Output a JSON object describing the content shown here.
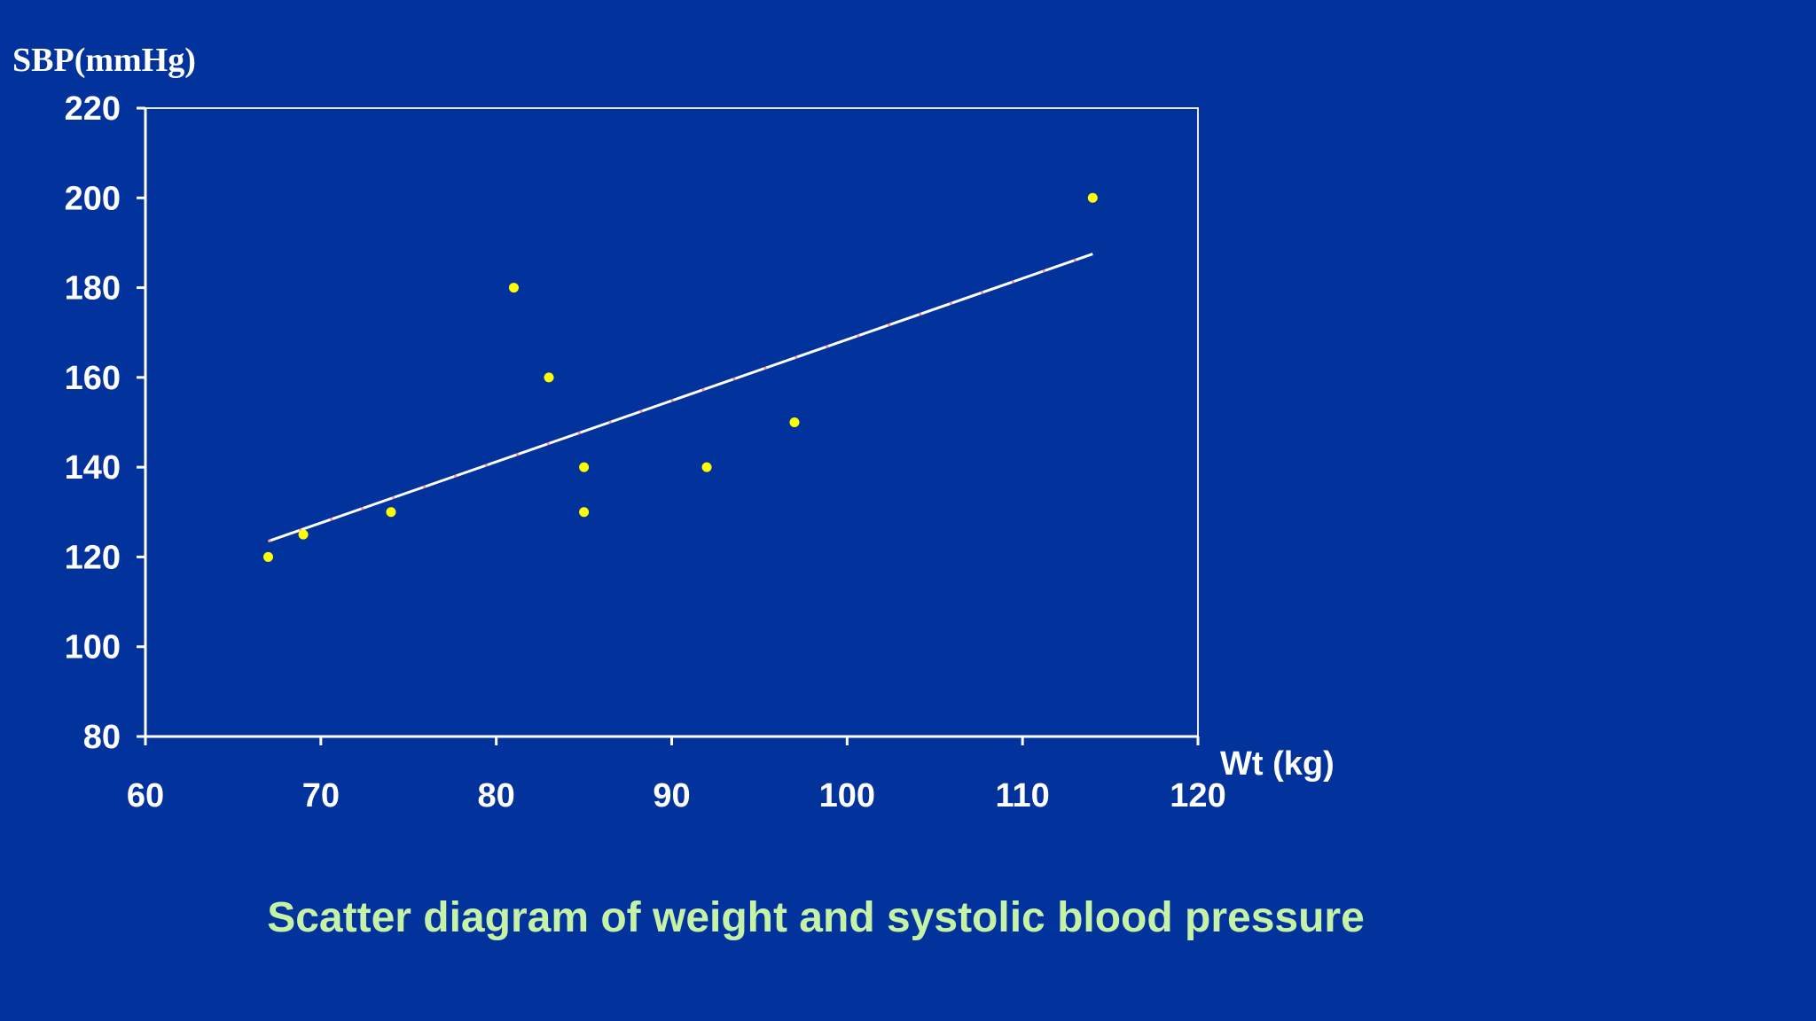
{
  "colors": {
    "background": "#02339c",
    "axis": "#ffffff",
    "points": "#ffff00",
    "trendline": "#ffffff",
    "trendline_accent": "#ff6a6a",
    "caption": "#c6f2a8"
  },
  "caption": "Scatter diagram of weight and systolic blood pressure",
  "chart_data": {
    "type": "scatter",
    "title": "",
    "xlabel": "Wt (kg)",
    "ylabel": "SBP(mmHg)",
    "xlim": [
      60,
      120
    ],
    "ylim": [
      80,
      220
    ],
    "xticks": [
      60,
      70,
      80,
      90,
      100,
      110,
      120
    ],
    "yticks": [
      80,
      100,
      120,
      140,
      160,
      180,
      200,
      220
    ],
    "series": [
      {
        "name": "observations",
        "points": [
          {
            "x": 67,
            "y": 120
          },
          {
            "x": 69,
            "y": 125
          },
          {
            "x": 74,
            "y": 130
          },
          {
            "x": 81,
            "y": 180
          },
          {
            "x": 83,
            "y": 160
          },
          {
            "x": 85,
            "y": 140
          },
          {
            "x": 85,
            "y": 130
          },
          {
            "x": 92,
            "y": 140
          },
          {
            "x": 97,
            "y": 150
          },
          {
            "x": 114,
            "y": 200
          }
        ]
      }
    ],
    "trendline": {
      "type": "linear",
      "x_start": 67,
      "y_start": 123.5,
      "x_end": 114,
      "y_end": 187.5
    },
    "grid": false,
    "legend": "none"
  }
}
